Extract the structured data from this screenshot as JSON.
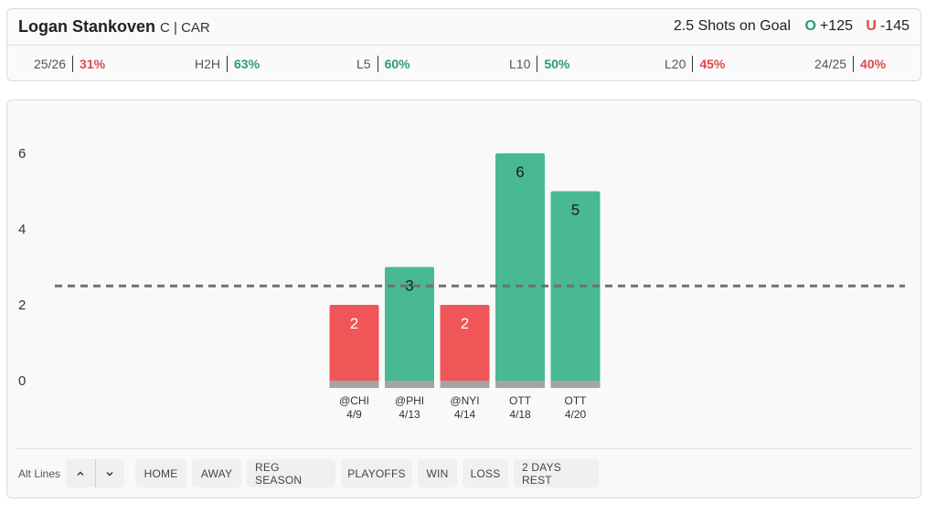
{
  "header": {
    "player_name": "Logan Stankoven",
    "player_info": "C | CAR",
    "market": "2.5 Shots on Goal",
    "over_symbol": "O",
    "over_odds": "+125",
    "under_symbol": "U",
    "under_odds": "-145"
  },
  "stats": [
    {
      "label": "25/26",
      "value": "31%",
      "color": "red"
    },
    {
      "label": "H2H",
      "value": "63%",
      "color": "green"
    },
    {
      "label": "L5",
      "value": "60%",
      "color": "green"
    },
    {
      "label": "L10",
      "value": "50%",
      "color": "green"
    },
    {
      "label": "L20",
      "value": "45%",
      "color": "red"
    },
    {
      "label": "24/25",
      "value": "40%",
      "color": "red"
    }
  ],
  "colors": {
    "over": "#48b991",
    "under": "#f05557",
    "base": "#a4a4a4",
    "line": "#707070"
  },
  "chart_data": {
    "type": "bar",
    "categories": [
      "@CHI 4/9",
      "@PHI 4/13",
      "@NYI 4/14",
      "OTT 4/18",
      "OTT 4/20"
    ],
    "opponents": [
      "@CHI",
      "@PHI",
      "@NYI",
      "OTT",
      "OTT"
    ],
    "dates": [
      "4/9",
      "4/13",
      "4/14",
      "4/18",
      "4/20"
    ],
    "values": [
      2,
      3,
      2,
      6,
      5
    ],
    "line": 2.5,
    "ylim": [
      0,
      6
    ],
    "yticks": [
      0,
      2,
      4,
      6
    ],
    "title": "",
    "xlabel": "",
    "ylabel": ""
  },
  "controls": {
    "alt_lines_label": "Alt Lines",
    "up_icon": "chevron-up-icon",
    "down_icon": "chevron-down-icon",
    "filters": [
      "HOME",
      "AWAY",
      "REG SEASON",
      "PLAYOFFS",
      "WIN",
      "LOSS",
      "2 DAYS REST"
    ]
  }
}
